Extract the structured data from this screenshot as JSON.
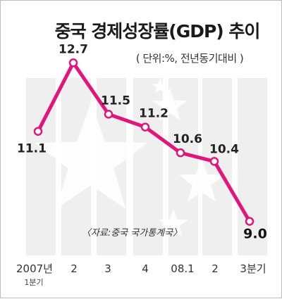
{
  "chart_data": {
    "type": "line",
    "title": "중국 경제성장률(GDP) 추이",
    "subtitle": "( 단위:%, 전년동기대비 )",
    "categories": [
      "2007년",
      "2",
      "3",
      "4",
      "08.1",
      "2",
      "3분기"
    ],
    "first_category_sub": "1분기",
    "values": [
      11.1,
      12.7,
      11.5,
      11.2,
      10.6,
      10.4,
      9.0
    ],
    "value_labels": [
      "11.1",
      "12.7",
      "11.5",
      "11.2",
      "10.6",
      "10.4",
      "9.0"
    ],
    "source": "〈자료:중국 국가통계국〉",
    "ylim": [
      8.6,
      13.0
    ],
    "line_color": "#e2157a",
    "bar_color": "#efefef",
    "star_color": "#d9d9d9",
    "grid": false
  }
}
